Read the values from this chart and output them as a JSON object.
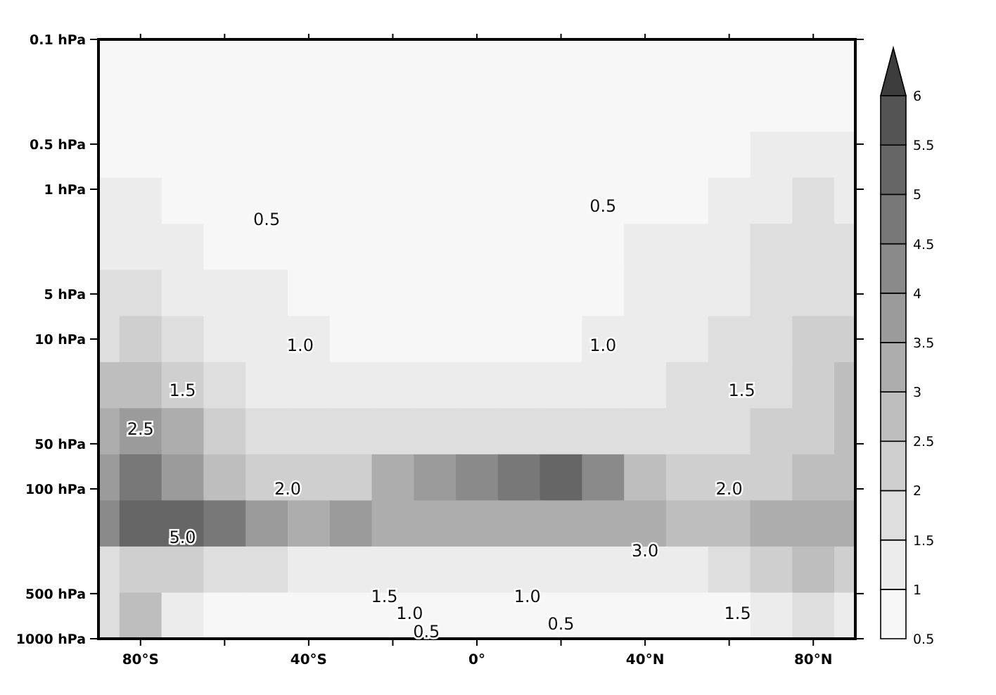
{
  "chart_data": {
    "type": "heatmap",
    "x": [
      -90,
      -80,
      -70,
      -60,
      -50,
      -40,
      -30,
      -20,
      -10,
      0,
      10,
      20,
      30,
      40,
      50,
      60,
      70,
      80,
      90
    ],
    "xlim": [
      -90,
      90
    ],
    "xticks": [
      {
        "value": -80,
        "label": "80°S"
      },
      {
        "value": -60,
        "label": null
      },
      {
        "value": -40,
        "label": "40°S"
      },
      {
        "value": -20,
        "label": null
      },
      {
        "value": 0,
        "label": "0°"
      },
      {
        "value": 20,
        "label": null
      },
      {
        "value": 40,
        "label": "40°N"
      },
      {
        "value": 60,
        "label": null
      },
      {
        "value": 80,
        "label": "80°N"
      }
    ],
    "log": "y",
    "ylim": [
      1000,
      0.1
    ],
    "yticks": [
      {
        "value": 0.1,
        "label": "0.1 hPa"
      },
      {
        "value": 0.5,
        "label": "0.5 hPa"
      },
      {
        "value": 1,
        "label": "1 hPa"
      },
      {
        "value": 5,
        "label": "5 hPa"
      },
      {
        "value": 10,
        "label": "10 hPa"
      },
      {
        "value": 50,
        "label": "50 hPa"
      },
      {
        "value": 100,
        "label": "100 hPa"
      },
      {
        "value": 500,
        "label": "500 hPa"
      },
      {
        "value": 1000,
        "label": "1000 hPa"
      }
    ],
    "cells": [
      [
        0.5,
        0.5,
        0.5,
        0.5,
        0.5,
        0.5,
        0.5,
        0.5,
        0.5,
        0.5,
        0.5,
        0.5,
        0.5,
        0.5,
        0.5,
        0.5,
        0.5,
        0.5,
        0.5
      ],
      [
        0.5,
        0.5,
        0.5,
        0.5,
        0.5,
        0.5,
        0.5,
        0.5,
        0.5,
        0.5,
        0.5,
        0.5,
        0.5,
        0.5,
        0.5,
        0.5,
        0.7,
        0.8,
        0.8
      ],
      [
        0.7,
        0.7,
        0.6,
        0.5,
        0.5,
        0.5,
        0.5,
        0.5,
        0.5,
        0.5,
        0.5,
        0.5,
        0.5,
        0.5,
        0.5,
        0.7,
        1.1,
        1.2,
        1.2
      ],
      [
        1.0,
        1.1,
        0.9,
        0.7,
        0.6,
        0.55,
        0.5,
        0.5,
        0.5,
        0.5,
        0.5,
        0.5,
        0.6,
        0.8,
        0.9,
        1.2,
        1.4,
        1.5,
        1.3
      ],
      [
        1.2,
        1.3,
        1.1,
        0.9,
        0.8,
        0.7,
        0.6,
        0.55,
        0.5,
        0.5,
        0.5,
        0.6,
        0.8,
        1.0,
        1.1,
        1.3,
        1.5,
        1.6,
        1.5
      ],
      [
        1.5,
        1.7,
        1.4,
        1.1,
        1.0,
        0.85,
        0.75,
        0.65,
        0.6,
        0.6,
        0.65,
        0.8,
        0.95,
        1.1,
        1.3,
        1.4,
        1.6,
        1.9,
        1.8
      ],
      [
        1.9,
        2.0,
        1.7,
        1.3,
        1.1,
        1.0,
        0.9,
        0.8,
        0.7,
        0.7,
        0.8,
        0.9,
        1.0,
        1.2,
        1.4,
        1.6,
        1.8,
        2.0,
        2.0
      ],
      [
        2.7,
        2.8,
        2.3,
        1.6,
        1.3,
        1.2,
        1.1,
        1.05,
        1.0,
        1.0,
        1.0,
        1.1,
        1.2,
        1.3,
        1.5,
        1.5,
        1.8,
        2.2,
        2.5
      ],
      [
        3.3,
        3.5,
        3.0,
        2.2,
        1.7,
        1.6,
        1.6,
        1.7,
        1.9,
        1.9,
        1.9,
        1.8,
        1.7,
        1.6,
        1.6,
        1.7,
        2.0,
        2.3,
        2.6
      ],
      [
        3.8,
        4.5,
        3.6,
        2.5,
        2.0,
        2.0,
        2.1,
        3.0,
        3.8,
        4.3,
        4.6,
        5.2,
        4.3,
        2.8,
        2.2,
        2.0,
        2.2,
        2.6,
        2.8
      ],
      [
        4.0,
        5.0,
        5.2,
        4.6,
        3.8,
        3.4,
        3.5,
        3.3,
        3.2,
        3.2,
        3.3,
        3.4,
        3.2,
        3.0,
        2.8,
        2.7,
        3.2,
        3.2,
        3.0
      ],
      [
        1.5,
        2.0,
        2.0,
        1.6,
        1.5,
        1.4,
        1.3,
        1.2,
        1.1,
        1.2,
        1.1,
        1.1,
        1.2,
        1.3,
        1.4,
        1.7,
        2.0,
        2.5,
        2.2
      ],
      [
        1.5,
        2.5,
        1.0,
        0.6,
        0.5,
        0.5,
        0.5,
        0.5,
        0.5,
        0.5,
        0.5,
        0.5,
        0.5,
        0.5,
        0.6,
        0.8,
        1.0,
        1.5,
        1.2
      ]
    ],
    "clim": [
      0.5,
      6
    ],
    "cticks": [
      0.5,
      1,
      1.5,
      2,
      2.5,
      3,
      3.5,
      4,
      4.5,
      5,
      5.5,
      6
    ],
    "colors": [
      "#f7f7f7",
      "#ececec",
      "#dedede",
      "#cfcfcf",
      "#bebebe",
      "#adadad",
      "#9b9b9b",
      "#8a8a8a",
      "#787878",
      "#666666",
      "#545454",
      "#3c3c3c"
    ],
    "annotations": [
      "0.5",
      "0.5",
      "1.0",
      "1.0",
      "1.5",
      "2.5",
      "1.5",
      "2.0",
      "2.0",
      "5.0",
      "3.0",
      "1.5",
      "1.0",
      "0.5",
      "1.0",
      "0.5",
      "1.5"
    ]
  }
}
